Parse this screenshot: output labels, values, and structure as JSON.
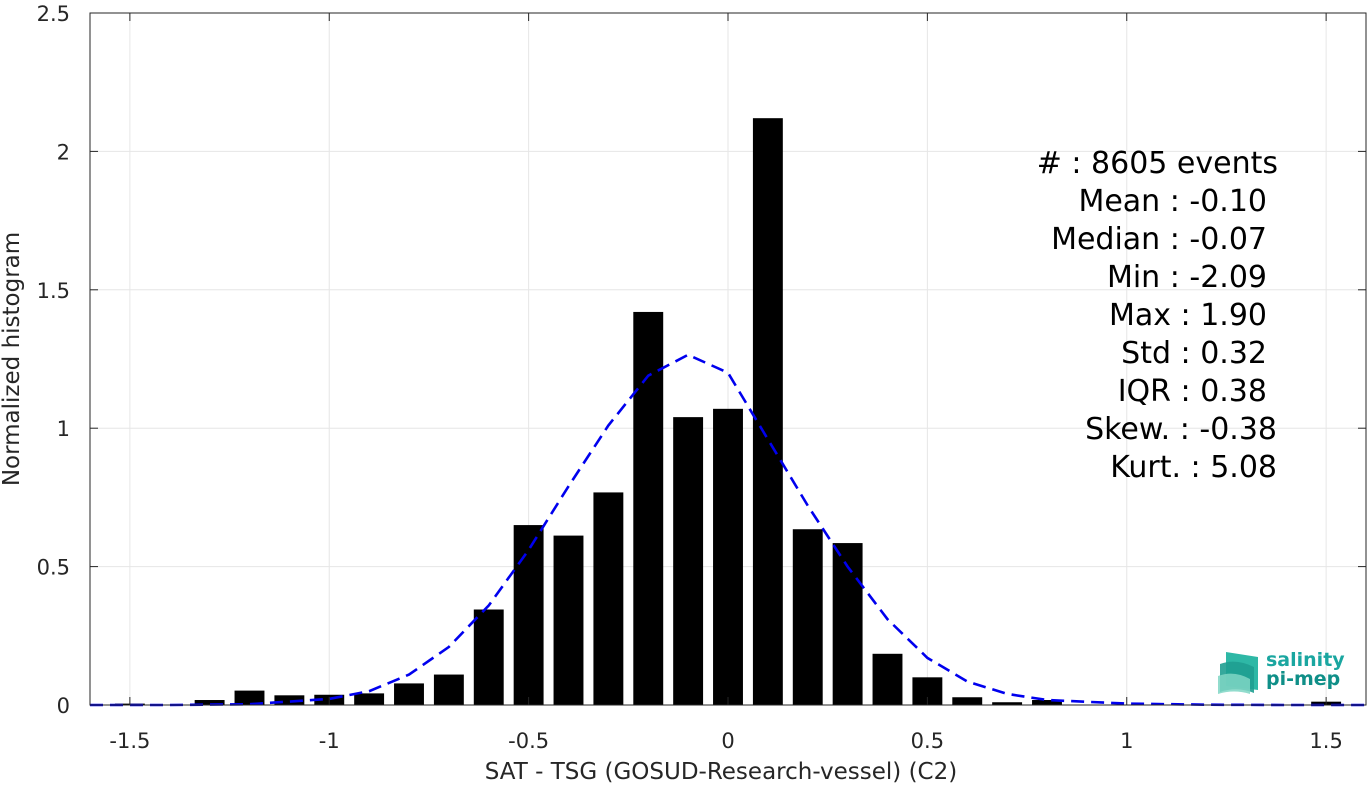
{
  "chart_data": {
    "type": "bar",
    "xlabel": "SAT - TSG (GOSUD-Research-vessel) (C2)",
    "ylabel": "Normalized histogram",
    "xlim": [
      -1.6,
      1.6
    ],
    "ylim": [
      0,
      2.5
    ],
    "x_ticks": [
      "-1.5",
      "-1",
      "-0.5",
      "0",
      "0.5",
      "1",
      "1.5"
    ],
    "x_tick_values": [
      -1.5,
      -1,
      -0.5,
      0,
      0.5,
      1,
      1.5
    ],
    "y_ticks": [
      "0",
      "0.5",
      "1",
      "1.5",
      "2",
      "2.5"
    ],
    "y_tick_values": [
      0,
      0.5,
      1,
      1.5,
      2,
      2.5
    ],
    "grid": true,
    "bin_width": 0.1,
    "bar_color": "#000000",
    "fit_color": "#0000ee",
    "bins": [
      {
        "x": -1.5,
        "y": 0.005
      },
      {
        "x": -1.3,
        "y": 0.018
      },
      {
        "x": -1.2,
        "y": 0.052
      },
      {
        "x": -1.1,
        "y": 0.035
      },
      {
        "x": -1.0,
        "y": 0.037
      },
      {
        "x": -0.9,
        "y": 0.042
      },
      {
        "x": -0.8,
        "y": 0.078
      },
      {
        "x": -0.7,
        "y": 0.11
      },
      {
        "x": -0.6,
        "y": 0.345
      },
      {
        "x": -0.5,
        "y": 0.65
      },
      {
        "x": -0.4,
        "y": 0.612
      },
      {
        "x": -0.3,
        "y": 0.768
      },
      {
        "x": -0.2,
        "y": 1.42
      },
      {
        "x": -0.1,
        "y": 1.04
      },
      {
        "x": 0.0,
        "y": 1.07
      },
      {
        "x": 0.1,
        "y": 2.12
      },
      {
        "x": 0.2,
        "y": 0.635
      },
      {
        "x": 0.3,
        "y": 0.585
      },
      {
        "x": 0.4,
        "y": 0.185
      },
      {
        "x": 0.5,
        "y": 0.1
      },
      {
        "x": 0.6,
        "y": 0.028
      },
      {
        "x": 0.7,
        "y": 0.01
      },
      {
        "x": 0.8,
        "y": 0.018
      },
      {
        "x": 1.5,
        "y": 0.012
      }
    ],
    "fit_curve": {
      "style": "dashed",
      "x": [
        -1.6,
        -1.4,
        -1.2,
        -1.0,
        -0.9,
        -0.8,
        -0.7,
        -0.6,
        -0.5,
        -0.4,
        -0.3,
        -0.2,
        -0.1,
        0.0,
        0.1,
        0.2,
        0.3,
        0.4,
        0.5,
        0.6,
        0.7,
        0.8,
        1.0,
        1.2,
        1.4,
        1.6
      ],
      "y": [
        0.0,
        0.0,
        0.003,
        0.022,
        0.05,
        0.11,
        0.21,
        0.36,
        0.56,
        0.79,
        1.01,
        1.19,
        1.265,
        1.2,
        0.96,
        0.72,
        0.5,
        0.31,
        0.17,
        0.085,
        0.04,
        0.018,
        0.005,
        0.001,
        0.0,
        0.0
      ]
    }
  },
  "stats": {
    "events": "#  : 8605 events",
    "mean": "Mean : -0.10",
    "median": "Median : -0.07",
    "min": "Min : -2.09",
    "max": "Max : 1.90",
    "std": "Std : 0.32",
    "iqr": "IQR : 0.38",
    "skew": "Skew. : -0.38",
    "kurt": "Kurt. : 5.08"
  },
  "logo": {
    "line1": "salinity",
    "line2": "pi-mep",
    "color1": "#1aa6a0",
    "color2": "#0f8f88"
  }
}
